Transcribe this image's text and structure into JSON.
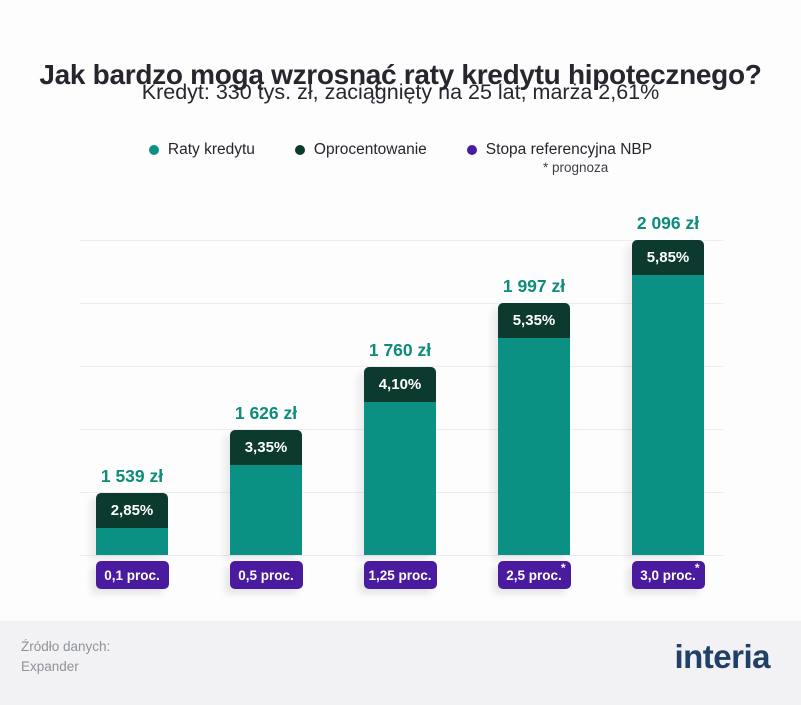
{
  "header": {
    "title": "Jak bardzo mogą wzrosnąć raty kredytu hipotecznego?",
    "subtitle": "Kredyt: 330 tys. zł, zaciągnięty na 25 lat, marża 2,61%"
  },
  "legend": {
    "items": [
      {
        "label": "Raty kredytu",
        "color": "#0B9183",
        "icon": "legend-dot-icon"
      },
      {
        "label": "Oprocentowanie",
        "color": "#0C3A2F",
        "icon": "legend-dot-icon"
      },
      {
        "label": "Stopa referencyjna NBP",
        "color": "#4A1B9E",
        "icon": "legend-dot-icon"
      }
    ],
    "footnote": "* prognoza"
  },
  "chart_data": {
    "type": "bar",
    "title": "Jak bardzo mogą wzrosnąć raty kredytu hipotecznego?",
    "subtitle": "Kredyt: 330 tys. zł, zaciągnięty na 25 lat, marża 2,61%",
    "x_axis": "Stopa referencyjna NBP",
    "categories": [
      "0,1 proc.",
      "0,5 proc.",
      "1,25 proc.",
      "2,5 proc.",
      "3,0 proc."
    ],
    "forecast_marker": "*",
    "grid": "horizontal",
    "series": [
      {
        "name": "Raty kredytu",
        "unit": "zł",
        "values": [
          1539,
          1626,
          1760,
          1997,
          2096
        ]
      },
      {
        "name": "Oprocentowanie",
        "unit": "%",
        "values": [
          2.85,
          3.35,
          4.1,
          5.35,
          5.85
        ]
      },
      {
        "name": "Stopa referencyjna NBP",
        "unit": "proc.",
        "values": [
          0.1,
          0.5,
          1.25,
          2.5,
          3.0
        ],
        "forecast": [
          false,
          false,
          false,
          true,
          true
        ]
      }
    ],
    "bars": [
      {
        "payment": "1 539 zł",
        "rate": "2,85%",
        "nbp": "0,1 proc.",
        "forecast": false
      },
      {
        "payment": "1 626 zł",
        "rate": "3,35%",
        "nbp": "0,5 proc.",
        "forecast": false
      },
      {
        "payment": "1 760 zł",
        "rate": "4,10%",
        "nbp": "1,25 proc.",
        "forecast": false
      },
      {
        "payment": "1 997 zł",
        "rate": "5,35%",
        "nbp": "2,5 proc.",
        "forecast": true
      },
      {
        "payment": "2 096 zł",
        "rate": "5,85%",
        "nbp": "3,0 proc.",
        "forecast": true
      }
    ]
  },
  "palette": {
    "bar_teal": "#0B9183",
    "bar_dark_green": "#0C3A2F",
    "badge_purple": "#4A1B9E",
    "value_label_teal": "#0D8C7B",
    "title_color": "#26262E",
    "gridline": "#ECEDF0",
    "footer_bg": "#F2F2F4",
    "footer_text": "#8E929B",
    "logo_navy": "#20406A"
  },
  "footer": {
    "source_label": "Źródło danych:",
    "source_name": "Expander",
    "logo_text": "interia"
  }
}
